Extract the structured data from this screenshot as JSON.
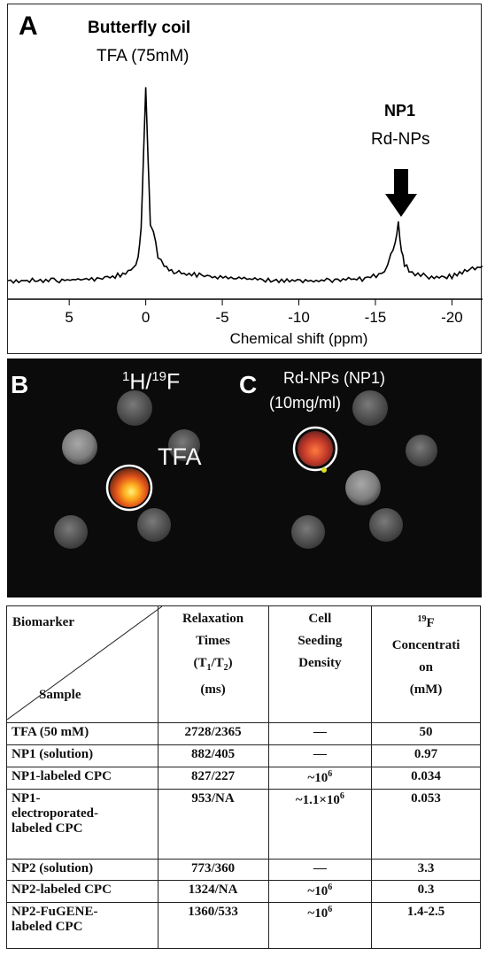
{
  "panel_a": {
    "letter": "A",
    "title": "Butterfly coil",
    "subtitle": "TFA (75mM)",
    "peak2_label": "NP1",
    "peak2_sublabel": "Rd-NPs",
    "xlabel": "Chemical shift (ppm)"
  },
  "chart_data": {
    "type": "line",
    "xlabel": "Chemical shift (ppm)",
    "x_ticks": [
      "5",
      "0",
      "-5",
      "-10",
      "-15",
      "-20"
    ],
    "xlim": [
      9,
      -22
    ],
    "series": [
      {
        "x": [
          9,
          6,
          3,
          1.5,
          0.8,
          0.5,
          0.3,
          0.15,
          0,
          -0.15,
          -0.3,
          -0.5,
          -0.8,
          -1.2,
          -2,
          -4,
          -8,
          -12,
          -14.5,
          -15.6,
          -16.0,
          -16.3,
          -16.5,
          -16.7,
          -16.9,
          -17.2,
          -17.6,
          -18.5,
          -20,
          -21.5,
          -22
        ],
        "y": [
          0.0,
          0.0,
          0.01,
          0.03,
          0.06,
          0.11,
          0.25,
          0.6,
          0.95,
          0.6,
          0.27,
          0.24,
          0.12,
          0.07,
          0.04,
          0.02,
          0.0,
          0.0,
          0.01,
          0.04,
          0.12,
          0.18,
          0.28,
          0.15,
          0.08,
          0.05,
          0.03,
          0.02,
          0.02,
          0.06,
          0.07
        ]
      }
    ]
  },
  "panel_b": {
    "letter": "B",
    "nuclei_h": "1",
    "nuclei_h_sym": "H/",
    "nuclei_f": "19",
    "nuclei_f_sym": "F",
    "tfa_label": "TFA"
  },
  "panel_c": {
    "letter": "C",
    "label": "Rd-NPs (NP1)",
    "concentration": "(10mg/ml)"
  },
  "table": {
    "header": {
      "biomarker": "Biomarker",
      "sample": "Sample",
      "relaxation_l1": "Relaxation",
      "relaxation_l2": "Times",
      "relaxation_l3_a": "(T",
      "relaxation_l3_sub1": "1",
      "relaxation_l3_b": "/T",
      "relaxation_l3_sub2": "2",
      "relaxation_l3_c": ")",
      "relaxation_l4": "(ms)",
      "density_l1": "Cell",
      "density_l2": "Seeding",
      "density_l3": "Density",
      "conc_sup": "19",
      "conc_l1": "F",
      "conc_l2": "Concentrati",
      "conc_l3": "on",
      "conc_l4": "(mM)"
    },
    "rows": [
      {
        "sample": "TFA (50 mM)",
        "times": "2728/2365",
        "density": "—",
        "density_sup": "",
        "conc": "50"
      },
      {
        "sample": "NP1 (solution)",
        "times": "882/405",
        "density": "—",
        "density_sup": "",
        "conc": "0.97"
      },
      {
        "sample": "NP1-labeled CPC",
        "times": "827/227",
        "density": "~10",
        "density_sup": "6",
        "conc": "0.034"
      },
      {
        "sample": "NP1-electroporated-labeled CPC",
        "sample_l1": "NP1-",
        "sample_l2": "electroporated-",
        "sample_l3": "labeled CPC",
        "times": "953/NA",
        "density": "~1.1×10",
        "density_sup": "6",
        "conc": "0.053"
      },
      {
        "sample": "NP2 (solution)",
        "times": "773/360",
        "density": "—",
        "density_sup": "",
        "conc": "3.3"
      },
      {
        "sample": "NP2-labeled CPC",
        "times": "1324/NA",
        "density": "~10",
        "density_sup": "6",
        "conc": "0.3"
      },
      {
        "sample": "NP2-FuGENE-labeled CPC",
        "sample_l1": "NP2-FuGENE-",
        "sample_l2": "labeled CPC",
        "times": "1360/533",
        "density": "~10",
        "density_sup": "6",
        "conc": "1.4-2.5"
      }
    ]
  }
}
